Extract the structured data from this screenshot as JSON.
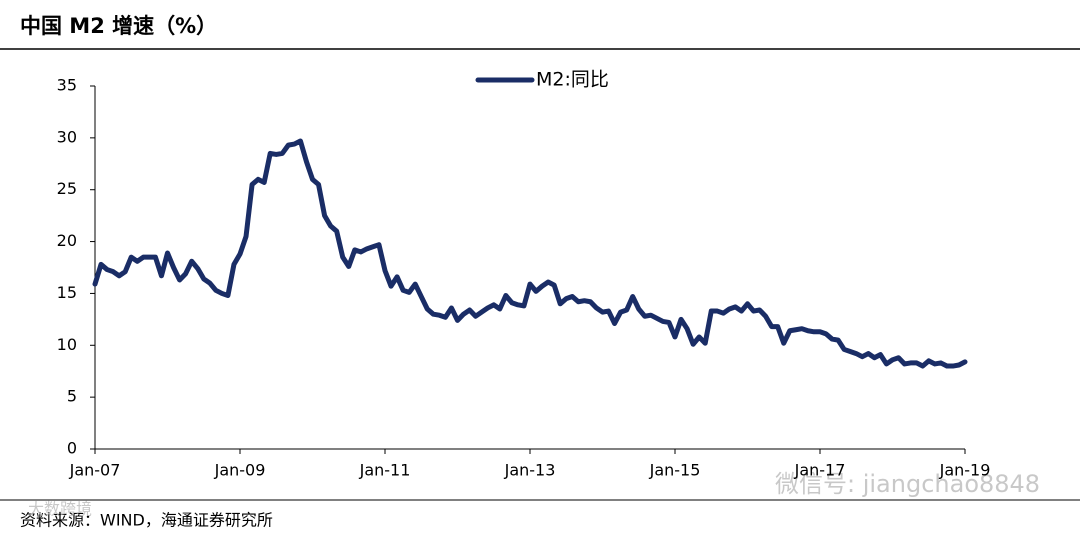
{
  "header": {
    "title": "中国 M2 增速（%）"
  },
  "chart_data": {
    "type": "line",
    "categories": [
      "Jan-07",
      null,
      null,
      null,
      null,
      null,
      null,
      null,
      null,
      null,
      null,
      null,
      null,
      null,
      null,
      null,
      null,
      null,
      null,
      null,
      null,
      null,
      null,
      null,
      "Jan-09",
      null,
      null,
      null,
      null,
      null,
      null,
      null,
      null,
      null,
      null,
      null,
      null,
      null,
      null,
      null,
      null,
      null,
      null,
      null,
      null,
      null,
      null,
      null,
      "Jan-11",
      null,
      null,
      null,
      null,
      null,
      null,
      null,
      null,
      null,
      null,
      null,
      null,
      null,
      null,
      null,
      null,
      null,
      null,
      null,
      null,
      null,
      null,
      null,
      "Jan-13",
      null,
      null,
      null,
      null,
      null,
      null,
      null,
      null,
      null,
      null,
      null,
      null,
      null,
      null,
      null,
      null,
      null,
      null,
      null,
      null,
      null,
      null,
      null,
      "Jan-15",
      null,
      null,
      null,
      null,
      null,
      null,
      null,
      null,
      null,
      null,
      null,
      null,
      null,
      null,
      null,
      null,
      null,
      null,
      null,
      null,
      null,
      null,
      null,
      "Jan-17",
      null,
      null,
      null,
      null,
      null,
      null,
      null,
      null,
      null,
      null,
      null,
      null,
      null,
      null,
      null,
      null,
      null,
      null,
      null,
      null,
      null,
      null,
      null,
      "Jan-19"
    ],
    "series": [
      {
        "name": "M2:同比",
        "color": "#1a2d66",
        "values": [
          15.9,
          17.8,
          17.3,
          17.1,
          16.7,
          17.1,
          18.5,
          18.1,
          18.5,
          18.5,
          18.5,
          16.7,
          18.9,
          17.5,
          16.3,
          16.9,
          18.1,
          17.4,
          16.4,
          16.0,
          15.3,
          15.0,
          14.8,
          17.8,
          18.8,
          20.5,
          25.5,
          26.0,
          25.7,
          28.5,
          28.4,
          28.5,
          29.3,
          29.4,
          29.7,
          27.7,
          26.0,
          25.5,
          22.5,
          21.5,
          21.0,
          18.5,
          17.6,
          19.2,
          19.0,
          19.3,
          19.5,
          19.7,
          17.2,
          15.7,
          16.6,
          15.3,
          15.1,
          15.9,
          14.7,
          13.5,
          13.0,
          12.9,
          12.7,
          13.6,
          12.4,
          13.0,
          13.4,
          12.8,
          13.2,
          13.6,
          13.9,
          13.5,
          14.8,
          14.1,
          13.9,
          13.8,
          15.9,
          15.2,
          15.7,
          16.1,
          15.8,
          14.0,
          14.5,
          14.7,
          14.2,
          14.3,
          14.2,
          13.6,
          13.2,
          13.3,
          12.1,
          13.2,
          13.4,
          14.7,
          13.5,
          12.8,
          12.9,
          12.6,
          12.3,
          12.2,
          10.8,
          12.5,
          11.6,
          10.1,
          10.8,
          10.2,
          13.3,
          13.3,
          13.1,
          13.5,
          13.7,
          13.3,
          14.0,
          13.3,
          13.4,
          12.8,
          11.8,
          11.8,
          10.2,
          11.4,
          11.5,
          11.6,
          11.4,
          11.3,
          11.3,
          11.1,
          10.6,
          10.5,
          9.6,
          9.4,
          9.2,
          8.9,
          9.2,
          8.8,
          9.1,
          8.2,
          8.6,
          8.8,
          8.2,
          8.3,
          8.3,
          8.0,
          8.5,
          8.2,
          8.3,
          8.0,
          8.0,
          8.1,
          8.4
        ]
      }
    ],
    "ylim": [
      0,
      35
    ],
    "yticks": [
      0,
      5,
      10,
      15,
      20,
      25,
      30,
      35
    ],
    "grid": false,
    "legend": "top"
  },
  "footer": {
    "source": "资料来源：WIND，海通证券研究所"
  },
  "watermarks": [
    "微信号: jiangchao8848",
    "大数跨境"
  ]
}
